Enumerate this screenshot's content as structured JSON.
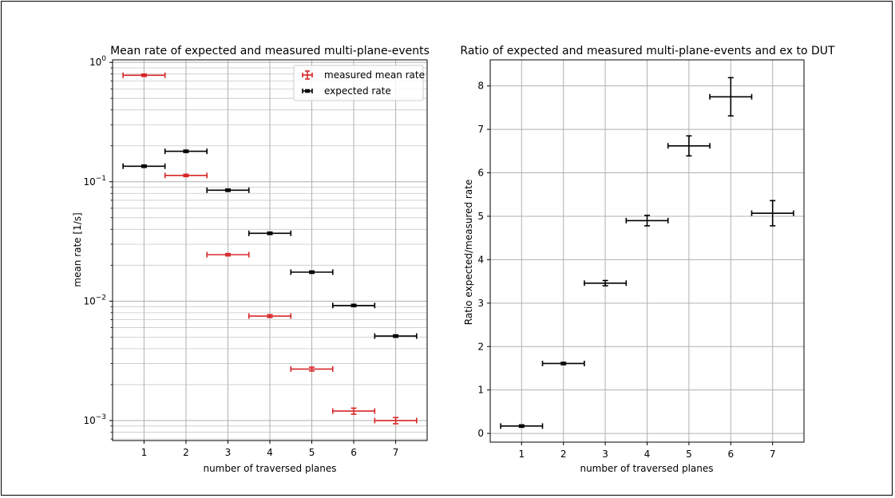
{
  "chart_data": [
    {
      "type": "errorbar",
      "title": "Mean rate of expected and measured multi-plane-events",
      "xlabel": "number of traversed planes",
      "ylabel": "mean rate [1/s]",
      "yscale": "log",
      "xlim": [
        0.25,
        7.75
      ],
      "ylim": [
        0.00068,
        1.05
      ],
      "grid": true,
      "minor_grid": true,
      "legend_position": "top-right",
      "x_ticks": [
        "1",
        "2",
        "3",
        "4",
        "5",
        "6",
        "7"
      ],
      "y_ticks": [
        {
          "value": 1,
          "base": "10",
          "exp": "0"
        },
        {
          "value": 0.1,
          "base": "10",
          "exp": "−1"
        },
        {
          "value": 0.01,
          "base": "10",
          "exp": "−2"
        },
        {
          "value": 0.001,
          "base": "10",
          "exp": "−3"
        }
      ],
      "series": [
        {
          "name": "measured mean rate",
          "color": "#d62728",
          "points": [
            {
              "x": 1,
              "y": 0.78,
              "xerr": 0.5,
              "yerr": 0.0
            },
            {
              "x": 2,
              "y": 0.113,
              "xerr": 0.5,
              "yerr": 0.001
            },
            {
              "x": 3,
              "y": 0.0245,
              "xerr": 0.5,
              "yerr": 0.0004
            },
            {
              "x": 4,
              "y": 0.0075,
              "xerr": 0.5,
              "yerr": 0.0002
            },
            {
              "x": 5,
              "y": 0.0027,
              "xerr": 0.5,
              "yerr": 0.0001
            },
            {
              "x": 6,
              "y": 0.0012,
              "xerr": 0.5,
              "yerr": 7e-05
            },
            {
              "x": 7,
              "y": 0.001,
              "xerr": 0.5,
              "yerr": 6e-05
            }
          ]
        },
        {
          "name": "expected rate",
          "color": "#000000",
          "points": [
            {
              "x": 1,
              "y": 0.135,
              "xerr": 0.5,
              "yerr": 0
            },
            {
              "x": 2,
              "y": 0.18,
              "xerr": 0.5,
              "yerr": 0
            },
            {
              "x": 3,
              "y": 0.085,
              "xerr": 0.5,
              "yerr": 0
            },
            {
              "x": 4,
              "y": 0.037,
              "xerr": 0.5,
              "yerr": 0
            },
            {
              "x": 5,
              "y": 0.0175,
              "xerr": 0.5,
              "yerr": 0
            },
            {
              "x": 6,
              "y": 0.0092,
              "xerr": 0.5,
              "yerr": 0
            },
            {
              "x": 7,
              "y": 0.0051,
              "xerr": 0.5,
              "yerr": 0
            }
          ]
        }
      ]
    },
    {
      "type": "errorbar",
      "title": "Ratio of expected and measured multi-plane-events and ex to DUT",
      "xlabel": "number of traversed planes",
      "ylabel": "Ratio expected/measured rate",
      "yscale": "linear",
      "xlim": [
        0.25,
        7.75
      ],
      "ylim": [
        -0.2,
        8.6
      ],
      "grid": true,
      "x_ticks": [
        "1",
        "2",
        "3",
        "4",
        "5",
        "6",
        "7"
      ],
      "y_ticks": [
        "0",
        "1",
        "2",
        "3",
        "4",
        "5",
        "6",
        "7",
        "8"
      ],
      "series": [
        {
          "color": "#000000",
          "points": [
            {
              "x": 1,
              "y": 0.17,
              "xerr": 0.5,
              "yerr": 0.0
            },
            {
              "x": 2,
              "y": 1.61,
              "xerr": 0.5,
              "yerr": 0.02
            },
            {
              "x": 3,
              "y": 3.46,
              "xerr": 0.5,
              "yerr": 0.06
            },
            {
              "x": 4,
              "y": 4.9,
              "xerr": 0.5,
              "yerr": 0.12
            },
            {
              "x": 5,
              "y": 6.62,
              "xerr": 0.5,
              "yerr": 0.23
            },
            {
              "x": 6,
              "y": 7.75,
              "xerr": 0.5,
              "yerr": 0.44
            },
            {
              "x": 7,
              "y": 5.07,
              "xerr": 0.5,
              "yerr": 0.29
            }
          ]
        }
      ]
    }
  ]
}
